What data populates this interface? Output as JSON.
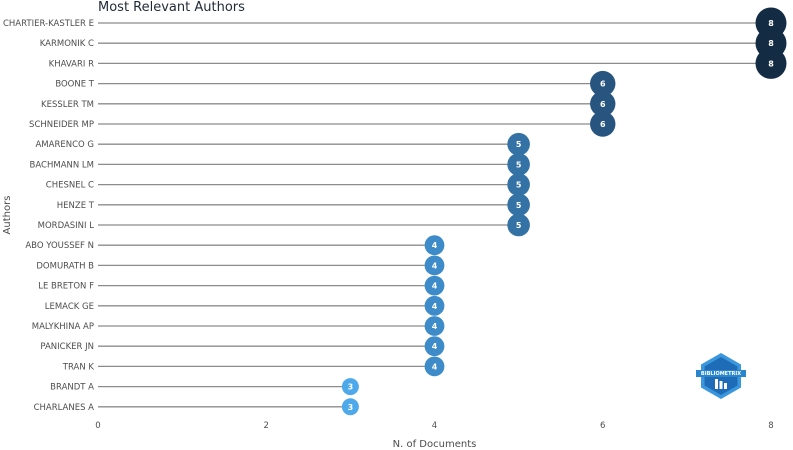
{
  "chart_data": {
    "type": "lollipop",
    "title": "Most Relevant Authors",
    "xlabel": "N. of Documents",
    "ylabel": "Authors",
    "xlim": [
      0,
      8
    ],
    "x_ticks": [
      "0",
      "2",
      "4",
      "6",
      "8"
    ],
    "grid": false,
    "categories": [
      "CHARTIER-KASTLER E",
      "KARMONIK C",
      "KHAVARI R",
      "BOONE T",
      "KESSLER TM",
      "SCHNEIDER MP",
      "AMARENCO G",
      "BACHMANN LM",
      "CHESNEL C",
      "HENZE T",
      "MORDASINI L",
      "ABO YOUSSEF N",
      "DOMURATH B",
      "LE BRETON F",
      "LEMACK GE",
      "MALYKHINA AP",
      "PANICKER JN",
      "TRAN K",
      "BRANDT A",
      "CHARLANES A"
    ],
    "values": [
      8,
      8,
      8,
      6,
      6,
      6,
      5,
      5,
      5,
      5,
      5,
      4,
      4,
      4,
      4,
      4,
      4,
      4,
      3,
      3
    ],
    "labels": [
      "8",
      "8",
      "8",
      "6",
      "6",
      "6",
      "5",
      "5",
      "5",
      "5",
      "5",
      "4",
      "4",
      "4",
      "4",
      "4",
      "4",
      "4",
      "3",
      "3"
    ],
    "value_colors": {
      "8": "#132b43",
      "6": "#28557f",
      "5": "#3472a5",
      "4": "#3d8bc9",
      "3": "#4ea9ea"
    }
  },
  "logo": {
    "text": "BIBLIOMETRIX",
    "colors": [
      "#1a5fa8",
      "#2e9be0"
    ]
  }
}
